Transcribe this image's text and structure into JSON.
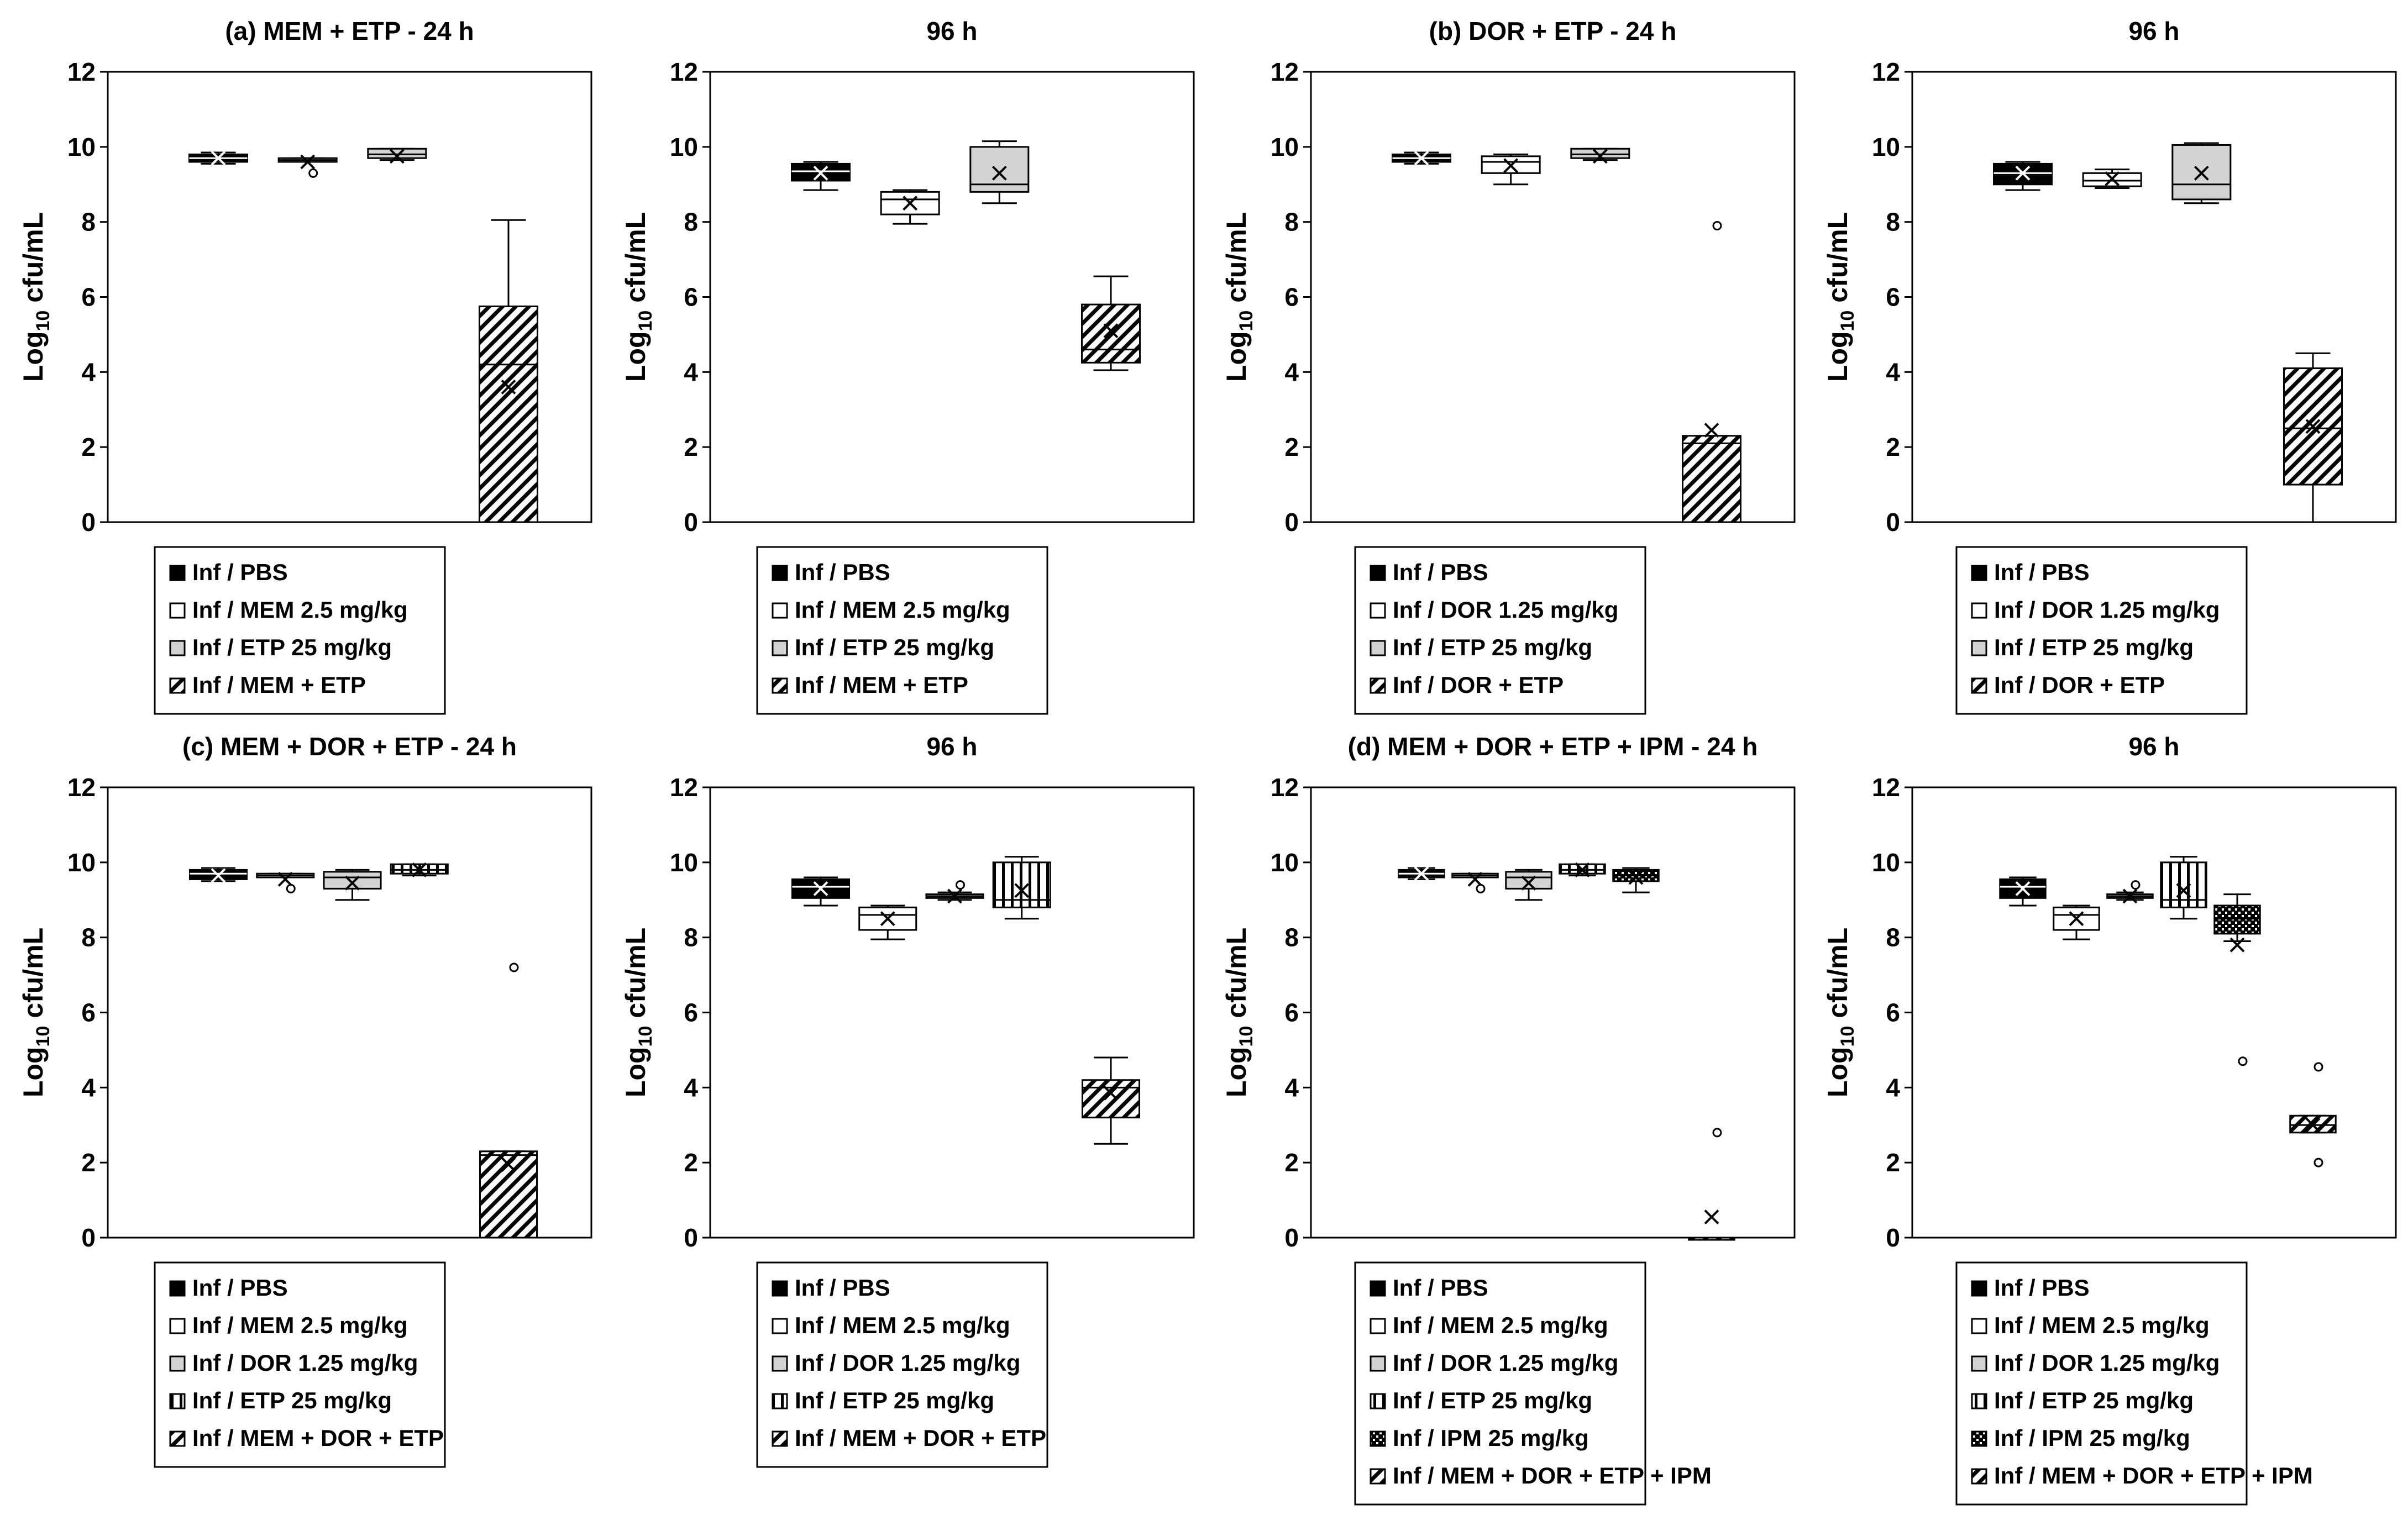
{
  "chart_data": [
    {
      "type": "box",
      "title": "(a) MEM + ETP - 24 h",
      "ylabel": "Log10 cfu/mL",
      "ylim": [
        0,
        12
      ],
      "yticks": [
        0,
        2,
        4,
        6,
        8,
        10,
        12
      ],
      "legend": [
        "Inf / PBS",
        "Inf / MEM 2.5 mg/kg",
        "Inf / ETP 25 mg/kg",
        "Inf / MEM + ETP"
      ],
      "series": [
        {
          "name": "Inf / PBS",
          "pattern": "black",
          "q1": 9.6,
          "median": 9.7,
          "q3": 9.8,
          "min": 9.55,
          "max": 9.85,
          "mean": 9.7,
          "outliers": []
        },
        {
          "name": "Inf / MEM 2.5 mg/kg",
          "pattern": "white",
          "q1": 9.6,
          "median": 9.65,
          "q3": 9.7,
          "min": 9.6,
          "max": 9.7,
          "mean": 9.6,
          "outliers": [
            9.3
          ]
        },
        {
          "name": "Inf / ETP 25 mg/kg",
          "pattern": "gray",
          "q1": 9.7,
          "median": 9.8,
          "q3": 9.95,
          "min": 9.65,
          "max": 9.95,
          "mean": 9.75,
          "outliers": []
        },
        {
          "name": "Inf / MEM + ETP",
          "pattern": "hatch",
          "q1": 0,
          "median": 4.2,
          "q3": 5.75,
          "min": 0,
          "max": 8.05,
          "mean": 3.6,
          "outliers": []
        }
      ]
    },
    {
      "type": "box",
      "title": "96 h",
      "ylabel": "Log10 cfu/mL",
      "ylim": [
        0,
        12
      ],
      "yticks": [
        0,
        2,
        4,
        6,
        8,
        10,
        12
      ],
      "legend": [
        "Inf / PBS",
        "Inf / MEM 2.5 mg/kg",
        "Inf / ETP 25 mg/kg",
        "Inf / MEM + ETP"
      ],
      "series": [
        {
          "name": "Inf / PBS",
          "pattern": "black",
          "q1": 9.1,
          "median": 9.35,
          "q3": 9.55,
          "min": 8.85,
          "max": 9.6,
          "mean": 9.3,
          "outliers": []
        },
        {
          "name": "Inf / MEM 2.5 mg/kg",
          "pattern": "white",
          "q1": 8.2,
          "median": 8.6,
          "q3": 8.8,
          "min": 7.95,
          "max": 8.85,
          "mean": 8.5,
          "outliers": []
        },
        {
          "name": "Inf / ETP 25 mg/kg",
          "pattern": "gray",
          "q1": 8.8,
          "median": 9.0,
          "q3": 10.0,
          "min": 8.5,
          "max": 10.15,
          "mean": 9.3,
          "outliers": []
        },
        {
          "name": "Inf / MEM + ETP",
          "pattern": "hatch",
          "q1": 4.25,
          "median": 4.6,
          "q3": 5.8,
          "min": 4.05,
          "max": 6.55,
          "mean": 5.1,
          "outliers": []
        }
      ]
    },
    {
      "type": "box",
      "title": "(b) DOR + ETP - 24 h",
      "ylabel": "Log10 cfu/mL",
      "ylim": [
        0,
        12
      ],
      "yticks": [
        0,
        2,
        4,
        6,
        8,
        10,
        12
      ],
      "legend": [
        "Inf / PBS",
        "Inf / DOR 1.25 mg/kg",
        "Inf / ETP 25 mg/kg",
        "Inf / DOR + ETP"
      ],
      "series": [
        {
          "name": "Inf / PBS",
          "pattern": "black",
          "q1": 9.6,
          "median": 9.7,
          "q3": 9.8,
          "min": 9.55,
          "max": 9.85,
          "mean": 9.7,
          "outliers": []
        },
        {
          "name": "Inf / DOR 1.25 mg/kg",
          "pattern": "white",
          "q1": 9.3,
          "median": 9.6,
          "q3": 9.75,
          "min": 9.0,
          "max": 9.8,
          "mean": 9.5,
          "outliers": []
        },
        {
          "name": "Inf / ETP 25 mg/kg",
          "pattern": "gray",
          "q1": 9.7,
          "median": 9.8,
          "q3": 9.95,
          "min": 9.65,
          "max": 9.95,
          "mean": 9.75,
          "outliers": []
        },
        {
          "name": "Inf / DOR + ETP",
          "pattern": "hatch",
          "q1": 0,
          "median": 2.1,
          "q3": 2.3,
          "min": 0,
          "max": 2.3,
          "mean": 2.45,
          "outliers": [
            7.9
          ]
        }
      ]
    },
    {
      "type": "box",
      "title": "96 h",
      "ylabel": "Log10 cfu/mL",
      "ylim": [
        0,
        12
      ],
      "yticks": [
        0,
        2,
        4,
        6,
        8,
        10,
        12
      ],
      "legend": [
        "Inf / PBS",
        "Inf / DOR 1.25 mg/kg",
        "Inf / ETP 25 mg/kg",
        "Inf / DOR + ETP"
      ],
      "series": [
        {
          "name": "Inf / PBS",
          "pattern": "black",
          "q1": 9.0,
          "median": 9.3,
          "q3": 9.55,
          "min": 8.85,
          "max": 9.6,
          "mean": 9.3,
          "outliers": []
        },
        {
          "name": "Inf / DOR 1.25 mg/kg",
          "pattern": "white",
          "q1": 8.95,
          "median": 9.1,
          "q3": 9.3,
          "min": 8.9,
          "max": 9.4,
          "mean": 9.15,
          "outliers": []
        },
        {
          "name": "Inf / ETP 25 mg/kg",
          "pattern": "gray",
          "q1": 8.6,
          "median": 9.0,
          "q3": 10.05,
          "min": 8.5,
          "max": 10.1,
          "mean": 9.3,
          "outliers": []
        },
        {
          "name": "Inf / DOR + ETP",
          "pattern": "hatch",
          "q1": 1.0,
          "median": 2.5,
          "q3": 4.1,
          "min": 0,
          "max": 4.5,
          "mean": 2.55,
          "outliers": []
        }
      ]
    },
    {
      "type": "box",
      "title": "(c) MEM + DOR + ETP - 24 h",
      "ylabel": "Log10 cfu/mL",
      "ylim": [
        0,
        12
      ],
      "yticks": [
        0,
        2,
        4,
        6,
        8,
        10,
        12
      ],
      "legend": [
        "Inf / PBS",
        "Inf / MEM 2.5 mg/kg",
        "Inf / DOR 1.25 mg/kg",
        "Inf / ETP 25 mg/kg",
        "Inf / MEM + DOR + ETP"
      ],
      "series": [
        {
          "name": "Inf / PBS",
          "pattern": "black",
          "q1": 9.55,
          "median": 9.7,
          "q3": 9.8,
          "min": 9.5,
          "max": 9.85,
          "mean": 9.65,
          "outliers": []
        },
        {
          "name": "Inf / MEM 2.5 mg/kg",
          "pattern": "white",
          "q1": 9.6,
          "median": 9.65,
          "q3": 9.7,
          "min": 9.6,
          "max": 9.7,
          "mean": 9.55,
          "outliers": [
            9.3
          ]
        },
        {
          "name": "Inf / DOR 1.25 mg/kg",
          "pattern": "gray",
          "q1": 9.3,
          "median": 9.6,
          "q3": 9.75,
          "min": 9.0,
          "max": 9.8,
          "mean": 9.45,
          "outliers": []
        },
        {
          "name": "Inf / ETP 25 mg/kg",
          "pattern": "vstripe",
          "q1": 9.7,
          "median": 9.8,
          "q3": 9.95,
          "min": 9.65,
          "max": 9.95,
          "mean": 9.8,
          "outliers": []
        },
        {
          "name": "Inf / MEM + DOR + ETP",
          "pattern": "hatch",
          "q1": 0,
          "median": 2.2,
          "q3": 2.3,
          "min": 0,
          "max": 2.3,
          "mean": 1.95,
          "outliers": [
            7.2
          ]
        }
      ]
    },
    {
      "type": "box",
      "title": "96 h",
      "ylabel": "Log10 cfu/mL",
      "ylim": [
        0,
        12
      ],
      "yticks": [
        0,
        2,
        4,
        6,
        8,
        10,
        12
      ],
      "legend": [
        "Inf / PBS",
        "Inf / MEM 2.5 mg/kg",
        "Inf / DOR 1.25 mg/kg",
        "Inf / ETP 25 mg/kg",
        "Inf / MEM + DOR + ETP"
      ],
      "series": [
        {
          "name": "Inf / PBS",
          "pattern": "black",
          "q1": 9.05,
          "median": 9.35,
          "q3": 9.55,
          "min": 8.85,
          "max": 9.6,
          "mean": 9.3,
          "outliers": []
        },
        {
          "name": "Inf / MEM 2.5 mg/kg",
          "pattern": "white",
          "q1": 8.2,
          "median": 8.6,
          "q3": 8.8,
          "min": 7.95,
          "max": 8.85,
          "mean": 8.5,
          "outliers": []
        },
        {
          "name": "Inf / DOR 1.25 mg/kg",
          "pattern": "gray",
          "q1": 9.05,
          "median": 9.1,
          "q3": 9.15,
          "min": 9.0,
          "max": 9.2,
          "mean": 9.1,
          "outliers": [
            9.4
          ]
        },
        {
          "name": "Inf / ETP 25 mg/kg",
          "pattern": "vstripe",
          "q1": 8.8,
          "median": 9.0,
          "q3": 10.0,
          "min": 8.5,
          "max": 10.15,
          "mean": 9.25,
          "outliers": []
        },
        {
          "name": "Inf / MEM + DOR + ETP",
          "pattern": "hatch",
          "q1": 3.2,
          "median": 4.0,
          "q3": 4.2,
          "min": 2.5,
          "max": 4.8,
          "mean": 3.85,
          "outliers": []
        }
      ]
    },
    {
      "type": "box",
      "title": "(d) MEM + DOR + ETP + IPM - 24 h",
      "ylabel": "Log10 cfu/mL",
      "ylim": [
        0,
        12
      ],
      "yticks": [
        0,
        2,
        4,
        6,
        8,
        10,
        12
      ],
      "legend": [
        "Inf / PBS",
        "Inf / MEM 2.5 mg/kg",
        "Inf / DOR 1.25 mg/kg",
        "Inf / ETP 25 mg/kg",
        "Inf / IPM 25 mg/kg",
        "Inf / MEM + DOR + ETP + IPM"
      ],
      "series": [
        {
          "name": "Inf / PBS",
          "pattern": "black",
          "q1": 9.6,
          "median": 9.7,
          "q3": 9.8,
          "min": 9.55,
          "max": 9.85,
          "mean": 9.7,
          "outliers": []
        },
        {
          "name": "Inf / MEM 2.5 mg/kg",
          "pattern": "white",
          "q1": 9.6,
          "median": 9.65,
          "q3": 9.7,
          "min": 9.6,
          "max": 9.7,
          "mean": 9.55,
          "outliers": [
            9.3
          ]
        },
        {
          "name": "Inf / DOR 1.25 mg/kg",
          "pattern": "gray",
          "q1": 9.3,
          "median": 9.6,
          "q3": 9.75,
          "min": 9.0,
          "max": 9.8,
          "mean": 9.45,
          "outliers": []
        },
        {
          "name": "Inf / ETP 25 mg/kg",
          "pattern": "vstripe",
          "q1": 9.7,
          "median": 9.8,
          "q3": 9.95,
          "min": 9.65,
          "max": 9.95,
          "mean": 9.8,
          "outliers": []
        },
        {
          "name": "Inf / IPM 25 mg/kg",
          "pattern": "check",
          "q1": 9.5,
          "median": 9.65,
          "q3": 9.8,
          "min": 9.2,
          "max": 9.85,
          "mean": 9.6,
          "outliers": []
        },
        {
          "name": "Inf / MEM + DOR + ETP + IPM",
          "pattern": "hatch",
          "q1": 0,
          "median": 0,
          "q3": 0,
          "min": 0,
          "max": 0,
          "mean": 0.55,
          "outliers": [
            2.8
          ]
        }
      ]
    },
    {
      "type": "box",
      "title": "96 h",
      "ylabel": "Log10 cfu/mL",
      "ylim": [
        0,
        12
      ],
      "yticks": [
        0,
        2,
        4,
        6,
        8,
        10,
        12
      ],
      "legend": [
        "Inf / PBS",
        "Inf / MEM 2.5 mg/kg",
        "Inf / DOR 1.25 mg/kg",
        "Inf / ETP 25 mg/kg",
        "Inf / IPM 25 mg/kg",
        "Inf / MEM + DOR + ETP + IPM"
      ],
      "series": [
        {
          "name": "Inf / PBS",
          "pattern": "black",
          "q1": 9.05,
          "median": 9.35,
          "q3": 9.55,
          "min": 8.85,
          "max": 9.6,
          "mean": 9.3,
          "outliers": []
        },
        {
          "name": "Inf / MEM 2.5 mg/kg",
          "pattern": "white",
          "q1": 8.2,
          "median": 8.6,
          "q3": 8.8,
          "min": 7.95,
          "max": 8.85,
          "mean": 8.5,
          "outliers": []
        },
        {
          "name": "Inf / DOR 1.25 mg/kg",
          "pattern": "gray",
          "q1": 9.05,
          "median": 9.1,
          "q3": 9.15,
          "min": 9.0,
          "max": 9.2,
          "mean": 9.1,
          "outliers": [
            9.4
          ]
        },
        {
          "name": "Inf / ETP 25 mg/kg",
          "pattern": "vstripe",
          "q1": 8.8,
          "median": 9.0,
          "q3": 10.0,
          "min": 8.5,
          "max": 10.15,
          "mean": 9.25,
          "outliers": []
        },
        {
          "name": "Inf / IPM 25 mg/kg",
          "pattern": "check",
          "q1": 8.1,
          "median": 8.5,
          "q3": 8.85,
          "min": 7.9,
          "max": 9.15,
          "mean": 7.8,
          "outliers": [
            4.7
          ]
        },
        {
          "name": "Inf / MEM + DOR + ETP + IPM",
          "pattern": "hatch",
          "q1": 2.8,
          "median": 3.0,
          "q3": 3.25,
          "min": 2.8,
          "max": 3.25,
          "mean": 3.0,
          "outliers": [
            4.55,
            2.0
          ]
        }
      ]
    }
  ]
}
